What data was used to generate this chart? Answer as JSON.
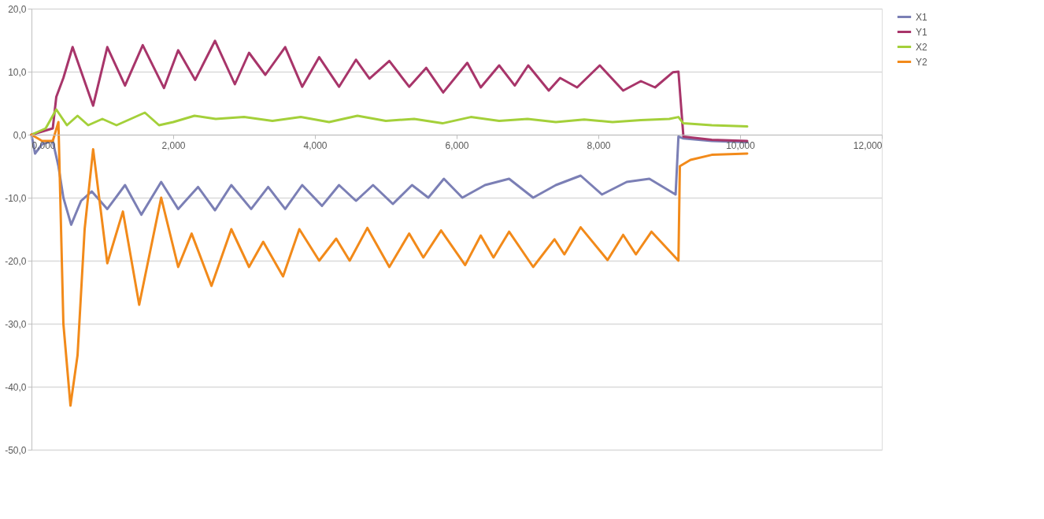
{
  "chart_data": {
    "type": "line",
    "xlim": [
      0,
      12
    ],
    "xticks": [
      {
        "value": 0,
        "label": "0,000"
      },
      {
        "value": 2,
        "label": "2,000"
      },
      {
        "value": 4,
        "label": "4,000"
      },
      {
        "value": 6,
        "label": "6,000"
      },
      {
        "value": 8,
        "label": "8,000"
      },
      {
        "value": 10,
        "label": "10,000"
      },
      {
        "value": 12,
        "label": "12,000"
      }
    ],
    "ylim": [
      -50,
      20
    ],
    "yticks": [
      {
        "value": -50,
        "label": "-50,0"
      },
      {
        "value": -40,
        "label": "-40,0"
      },
      {
        "value": -30,
        "label": "-30,0"
      },
      {
        "value": -20,
        "label": "-20,0"
      },
      {
        "value": -10,
        "label": "-10,0"
      },
      {
        "value": 0,
        "label": "0,0"
      },
      {
        "value": 10,
        "label": "10,0"
      },
      {
        "value": 20,
        "label": "20,0"
      }
    ],
    "grid": "y",
    "legend": "right",
    "marker": "none",
    "line_style": "solid",
    "series": [
      {
        "name": "X1",
        "color": "#7b7fb5",
        "x": [
          0,
          0.05,
          0.15,
          0.3,
          0.38,
          0.45,
          0.56,
          0.7,
          0.85,
          1.07,
          1.32,
          1.55,
          1.83,
          2.07,
          2.35,
          2.59,
          2.82,
          3.1,
          3.34,
          3.58,
          3.82,
          4.1,
          4.34,
          4.58,
          4.82,
          5.1,
          5.37,
          5.6,
          5.82,
          6.08,
          6.4,
          6.74,
          7.08,
          7.4,
          7.75,
          8.05,
          8.4,
          8.72,
          9.09,
          9.13,
          9.2,
          9.6,
          10.1
        ],
        "values": [
          0,
          -3,
          -1.5,
          -1,
          -5,
          -10,
          -14.3,
          -10.5,
          -9,
          -11.8,
          -8,
          -12.7,
          -7.5,
          -11.8,
          -8.3,
          -12,
          -8,
          -11.8,
          -8.3,
          -11.8,
          -8,
          -11.3,
          -8,
          -10.5,
          -8,
          -11,
          -8,
          -10,
          -7,
          -10,
          -8,
          -7,
          -10,
          -8,
          -6.5,
          -9.5,
          -7.5,
          -7,
          -9.5,
          -0.3,
          -0.6,
          -1,
          -1.2
        ]
      },
      {
        "name": "Y1",
        "color": "#a8356a",
        "x": [
          0,
          0.15,
          0.3,
          0.35,
          0.45,
          0.58,
          0.87,
          1.07,
          1.32,
          1.57,
          1.87,
          2.07,
          2.31,
          2.59,
          2.87,
          3.07,
          3.3,
          3.58,
          3.82,
          4.06,
          4.34,
          4.58,
          4.77,
          5.05,
          5.33,
          5.57,
          5.81,
          6.15,
          6.34,
          6.6,
          6.82,
          7.01,
          7.3,
          7.46,
          7.7,
          8.02,
          8.35,
          8.6,
          8.8,
          9.05,
          9.13,
          9.2,
          9.6,
          10.1
        ],
        "values": [
          0,
          0.5,
          1,
          6,
          9,
          13.9,
          4.6,
          13.9,
          7.8,
          14.2,
          7.4,
          13.4,
          8.7,
          14.9,
          8,
          13,
          9.5,
          13.9,
          7.6,
          12.3,
          7.6,
          11.9,
          8.9,
          11.7,
          7.6,
          10.6,
          6.7,
          11.4,
          7.5,
          11,
          7.8,
          11,
          7,
          9,
          7.5,
          11,
          7,
          8.5,
          7.5,
          9.9,
          10,
          -0.3,
          -0.8,
          -1
        ]
      },
      {
        "name": "X2",
        "color": "#a4d03a",
        "x": [
          0,
          0.2,
          0.35,
          0.5,
          0.65,
          0.8,
          1.0,
          1.2,
          1.4,
          1.6,
          1.8,
          2.0,
          2.3,
          2.6,
          3.0,
          3.4,
          3.8,
          4.2,
          4.6,
          5.0,
          5.4,
          5.8,
          6.2,
          6.6,
          7.0,
          7.4,
          7.8,
          8.2,
          8.6,
          9.0,
          9.13,
          9.2,
          9.6,
          10.1
        ],
        "values": [
          0,
          1,
          4,
          1.5,
          3,
          1.5,
          2.5,
          1.5,
          2.5,
          3.5,
          1.5,
          2,
          3,
          2.5,
          2.8,
          2.2,
          2.8,
          2,
          3,
          2.2,
          2.5,
          1.8,
          2.8,
          2.2,
          2.5,
          2,
          2.4,
          2,
          2.3,
          2.5,
          2.8,
          1.8,
          1.5,
          1.3
        ]
      },
      {
        "name": "Y2",
        "color": "#f28a1a",
        "x": [
          0,
          0.15,
          0.3,
          0.38,
          0.45,
          0.55,
          0.65,
          0.75,
          0.87,
          1.07,
          1.29,
          1.52,
          1.83,
          2.07,
          2.26,
          2.54,
          2.82,
          3.07,
          3.27,
          3.55,
          3.78,
          4.06,
          4.3,
          4.49,
          4.74,
          5.05,
          5.33,
          5.53,
          5.78,
          6.12,
          6.34,
          6.52,
          6.74,
          7.08,
          7.38,
          7.52,
          7.75,
          8.13,
          8.35,
          8.53,
          8.75,
          9.13,
          9.15,
          9.3,
          9.6,
          10.1
        ],
        "values": [
          0,
          -1,
          -1,
          2,
          -30,
          -43,
          -35,
          -15,
          -2.3,
          -20.4,
          -12.2,
          -27,
          -10,
          -21,
          -15.7,
          -24,
          -15,
          -21,
          -17,
          -22.5,
          -15,
          -20,
          -16.5,
          -20,
          -14.8,
          -21,
          -15.7,
          -19.5,
          -15.2,
          -20.7,
          -16,
          -19.5,
          -15.4,
          -21,
          -16.6,
          -19,
          -14.7,
          -19.9,
          -15.9,
          -19,
          -15.4,
          -20,
          -5,
          -4,
          -3.2,
          -3
        ]
      }
    ]
  }
}
